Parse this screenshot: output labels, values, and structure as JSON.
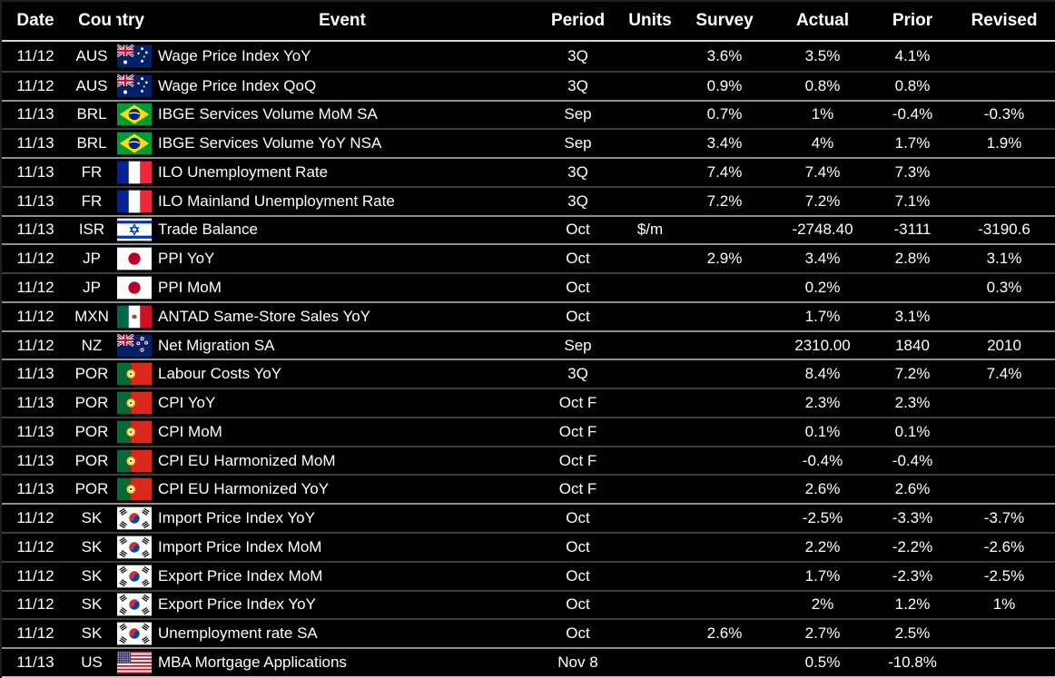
{
  "table": {
    "columns": [
      {
        "key": "date",
        "label": "Date"
      },
      {
        "key": "country",
        "label": "Country"
      },
      {
        "key": "event",
        "label": "Event"
      },
      {
        "key": "period",
        "label": "Period"
      },
      {
        "key": "units",
        "label": "Units"
      },
      {
        "key": "survey",
        "label": "Survey"
      },
      {
        "key": "actual",
        "label": "Actual"
      },
      {
        "key": "prior",
        "label": "Prior"
      },
      {
        "key": "revised",
        "label": "Revised"
      }
    ],
    "rows": [
      {
        "date": "11/12",
        "country": "AUS",
        "flag": "australia",
        "event": "Wage Price Index YoY",
        "period": "3Q",
        "units": "",
        "survey": "3.6%",
        "actual": "3.5%",
        "prior": "4.1%",
        "revised": ""
      },
      {
        "date": "11/12",
        "country": "AUS",
        "flag": "australia",
        "event": "Wage Price Index QoQ",
        "period": "3Q",
        "units": "",
        "survey": "0.9%",
        "actual": "0.8%",
        "prior": "0.8%",
        "revised": ""
      },
      {
        "date": "11/13",
        "country": "BRL",
        "flag": "brazil",
        "event": "IBGE Services Volume MoM SA",
        "period": "Sep",
        "units": "",
        "survey": "0.7%",
        "actual": "1%",
        "prior": "-0.4%",
        "revised": "-0.3%"
      },
      {
        "date": "11/13",
        "country": "BRL",
        "flag": "brazil",
        "event": "IBGE Services Volume YoY NSA",
        "period": "Sep",
        "units": "",
        "survey": "3.4%",
        "actual": "4%",
        "prior": "1.7%",
        "revised": "1.9%"
      },
      {
        "date": "11/13",
        "country": "FR",
        "flag": "france",
        "event": "ILO Unemployment Rate",
        "period": "3Q",
        "units": "",
        "survey": "7.4%",
        "actual": "7.4%",
        "prior": "7.3%",
        "revised": ""
      },
      {
        "date": "11/13",
        "country": "FR",
        "flag": "france",
        "event": "ILO Mainland Unemployment Rate",
        "period": "3Q",
        "units": "",
        "survey": "7.2%",
        "actual": "7.2%",
        "prior": "7.1%",
        "revised": ""
      },
      {
        "date": "11/13",
        "country": "ISR",
        "flag": "israel",
        "event": "Trade Balance",
        "period": "Oct",
        "units": "$/m",
        "survey": "",
        "actual": "-2748.40",
        "prior": "-3111",
        "revised": "-3190.6"
      },
      {
        "date": "11/12",
        "country": "JP",
        "flag": "japan",
        "event": "PPI YoY",
        "period": "Oct",
        "units": "",
        "survey": "2.9%",
        "actual": "3.4%",
        "prior": "2.8%",
        "revised": "3.1%"
      },
      {
        "date": "11/12",
        "country": "JP",
        "flag": "japan",
        "event": "PPI MoM",
        "period": "Oct",
        "units": "",
        "survey": "",
        "actual": "0.2%",
        "prior": "",
        "revised": "0.3%"
      },
      {
        "date": "11/12",
        "country": "MXN",
        "flag": "mexico",
        "event": "ANTAD Same-Store Sales YoY",
        "period": "Oct",
        "units": "",
        "survey": "",
        "actual": "1.7%",
        "prior": "3.1%",
        "revised": ""
      },
      {
        "date": "11/12",
        "country": "NZ",
        "flag": "new-zealand",
        "event": "Net Migration SA",
        "period": "Sep",
        "units": "",
        "survey": "",
        "actual": "2310.00",
        "prior": "1840",
        "revised": "2010"
      },
      {
        "date": "11/13",
        "country": "POR",
        "flag": "portugal",
        "event": "Labour Costs YoY",
        "period": "3Q",
        "units": "",
        "survey": "",
        "actual": "8.4%",
        "prior": "7.2%",
        "revised": "7.4%"
      },
      {
        "date": "11/13",
        "country": "POR",
        "flag": "portugal",
        "event": "CPI YoY",
        "period": "Oct F",
        "units": "",
        "survey": "",
        "actual": "2.3%",
        "prior": "2.3%",
        "revised": ""
      },
      {
        "date": "11/13",
        "country": "POR",
        "flag": "portugal",
        "event": "CPI MoM",
        "period": "Oct F",
        "units": "",
        "survey": "",
        "actual": "0.1%",
        "prior": "0.1%",
        "revised": ""
      },
      {
        "date": "11/13",
        "country": "POR",
        "flag": "portugal",
        "event": "CPI EU Harmonized MoM",
        "period": "Oct F",
        "units": "",
        "survey": "",
        "actual": "-0.4%",
        "prior": "-0.4%",
        "revised": ""
      },
      {
        "date": "11/13",
        "country": "POR",
        "flag": "portugal",
        "event": "CPI EU Harmonized YoY",
        "period": "Oct F",
        "units": "",
        "survey": "",
        "actual": "2.6%",
        "prior": "2.6%",
        "revised": ""
      },
      {
        "date": "11/12",
        "country": "SK",
        "flag": "south-korea",
        "event": "Import Price Index YoY",
        "period": "Oct",
        "units": "",
        "survey": "",
        "actual": "-2.5%",
        "prior": "-3.3%",
        "revised": "-3.7%"
      },
      {
        "date": "11/12",
        "country": "SK",
        "flag": "south-korea",
        "event": "Import Price Index MoM",
        "period": "Oct",
        "units": "",
        "survey": "",
        "actual": "2.2%",
        "prior": "-2.2%",
        "revised": "-2.6%"
      },
      {
        "date": "11/12",
        "country": "SK",
        "flag": "south-korea",
        "event": "Export Price Index MoM",
        "period": "Oct",
        "units": "",
        "survey": "",
        "actual": "1.7%",
        "prior": "-2.3%",
        "revised": "-2.5%"
      },
      {
        "date": "11/12",
        "country": "SK",
        "flag": "south-korea",
        "event": "Export Price Index YoY",
        "period": "Oct",
        "units": "",
        "survey": "",
        "actual": "2%",
        "prior": "1.2%",
        "revised": "1%"
      },
      {
        "date": "11/12",
        "country": "SK",
        "flag": "south-korea",
        "event": "Unemployment rate SA",
        "period": "Oct",
        "units": "",
        "survey": "2.6%",
        "actual": "2.7%",
        "prior": "2.5%",
        "revised": ""
      },
      {
        "date": "11/13",
        "country": "US",
        "flag": "united-states",
        "event": "MBA Mortgage Applications",
        "period": "Nov 8",
        "units": "",
        "survey": "",
        "actual": "0.5%",
        "prior": "-10.8%",
        "revised": ""
      }
    ]
  },
  "colors": {
    "background": "#000000",
    "text": "#ffffff",
    "header_rule": "#d6d6d6",
    "row_rule_dim": "#3d3d3d",
    "row_rule_group": "#8f8f8f",
    "bottom_rule": "#c9c9c9"
  }
}
